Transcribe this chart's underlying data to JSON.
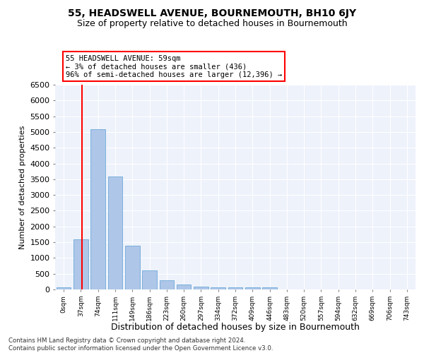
{
  "title": "55, HEADSWELL AVENUE, BOURNEMOUTH, BH10 6JY",
  "subtitle": "Size of property relative to detached houses in Bournemouth",
  "xlabel": "Distribution of detached houses by size in Bournemouth",
  "ylabel": "Number of detached properties",
  "bin_labels": [
    "0sqm",
    "37sqm",
    "74sqm",
    "111sqm",
    "149sqm",
    "186sqm",
    "223sqm",
    "260sqm",
    "297sqm",
    "334sqm",
    "372sqm",
    "409sqm",
    "446sqm",
    "483sqm",
    "520sqm",
    "557sqm",
    "594sqm",
    "632sqm",
    "669sqm",
    "706sqm",
    "743sqm"
  ],
  "bar_values": [
    75,
    1600,
    5080,
    3580,
    1400,
    600,
    300,
    150,
    100,
    75,
    60,
    60,
    60,
    0,
    0,
    0,
    0,
    0,
    0,
    0,
    0
  ],
  "bar_color": "#aec6e8",
  "bar_edge_color": "#5a9fd4",
  "annotation_text": "55 HEADSWELL AVENUE: 59sqm\n← 3% of detached houses are smaller (436)\n96% of semi-detached houses are larger (12,396) →",
  "annotation_box_color": "white",
  "annotation_box_edge_color": "red",
  "vline_color": "red",
  "ylim": [
    0,
    6500
  ],
  "yticks": [
    0,
    500,
    1000,
    1500,
    2000,
    2500,
    3000,
    3500,
    4000,
    4500,
    5000,
    5500,
    6000,
    6500
  ],
  "background_color": "#eef2fb",
  "grid_color": "white",
  "footer_line1": "Contains HM Land Registry data © Crown copyright and database right 2024.",
  "footer_line2": "Contains public sector information licensed under the Open Government Licence v3.0.",
  "title_fontsize": 10,
  "subtitle_fontsize": 9,
  "ylabel_fontsize": 8,
  "xlabel_fontsize": 9
}
